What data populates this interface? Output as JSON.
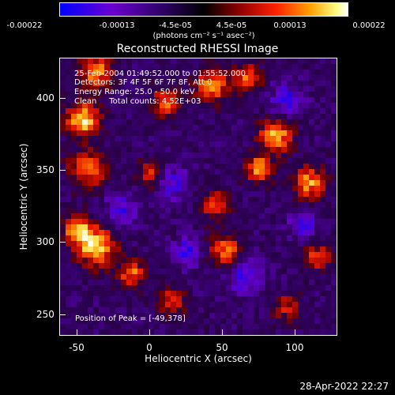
{
  "colorbar": {
    "tick_labels": [
      "-0.00022",
      "-0.00013",
      "-4.5e-05",
      "4.5e-05",
      "0.00013",
      "0.00022"
    ],
    "unit": "(photons cm⁻² s⁻¹ asec⁻²)",
    "range": [
      -0.00022,
      0.00022
    ],
    "colors": [
      "#0000ff",
      "#7a00c8",
      "#3c0060",
      "#000000",
      "#7a0000",
      "#ff0000",
      "#ffa000",
      "#ffffd0",
      "#ffffff"
    ]
  },
  "chart_data": {
    "type": "heatmap",
    "title": "Reconstructed RHESSI Image",
    "xlabel": "Heliocentric X (arcsec)",
    "ylabel": "Heliocentric Y (arcsec)",
    "xlim": [
      -63,
      128
    ],
    "ylim": [
      235,
      426
    ],
    "xticks": [
      -50,
      0,
      50,
      100
    ],
    "yticks": [
      250,
      300,
      350,
      400
    ],
    "peak_position": [
      -49,
      378
    ],
    "colormap_colors": [
      "#0000ff",
      "#6000c0",
      "#3a0070",
      "#200040",
      "#600000",
      "#e00000",
      "#ff8000",
      "#ffe060",
      "#ffffff"
    ]
  },
  "annotations": {
    "time_range": "25-Feb-2004 01:49:52.000 to 01:55:52.000",
    "detectors": "Detectors: 3F 4F 5F 6F 7F 8F, Att 0",
    "energy_range": "Energy Range: 25.0 - 50.0 keV",
    "method": "Clean     Total counts: 4.52E+03",
    "peak": "Position of Peak = [-49,378]"
  },
  "footer": {
    "timestamp": "28-Apr-2022 22:27"
  }
}
